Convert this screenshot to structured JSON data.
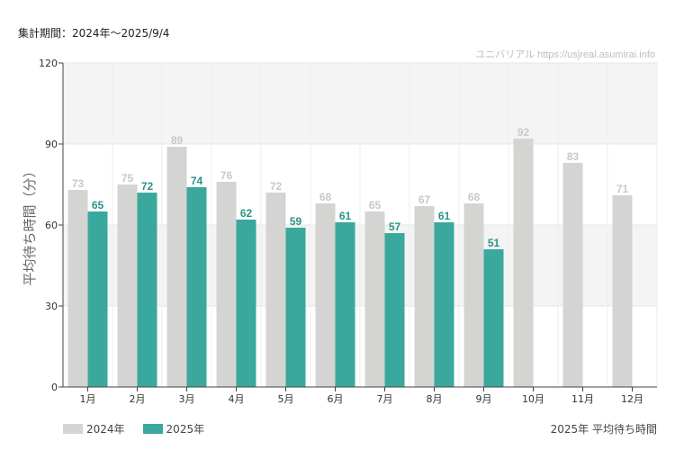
{
  "header": {
    "period": "集計期間：2024年～2025/9/4",
    "source": "ユニバリアル  https://usjreal.asumirai.info"
  },
  "footer": {
    "caption": "2025年 平均待ち時間"
  },
  "colors": {
    "series_2024": "#d4d4d2",
    "series_2025": "#3aa89c",
    "label_2024": "#c8c8c8",
    "label_2025": "#2b9286",
    "band": "#f4f4f4",
    "grid": "#e6e6e6"
  },
  "chart_data": {
    "type": "bar",
    "ylabel": "平均待ち時間（分）",
    "ylim": [
      0,
      120
    ],
    "yticks": [
      0,
      30,
      60,
      90,
      120
    ],
    "categories": [
      "1月",
      "2月",
      "3月",
      "4月",
      "5月",
      "6月",
      "7月",
      "8月",
      "9月",
      "10月",
      "11月",
      "12月"
    ],
    "series": [
      {
        "name": "2024年",
        "values": [
          73,
          75,
          89,
          76,
          72,
          68,
          65,
          67,
          68,
          92,
          83,
          71
        ]
      },
      {
        "name": "2025年",
        "values": [
          65,
          72,
          74,
          62,
          59,
          61,
          57,
          61,
          51,
          null,
          null,
          null
        ]
      }
    ],
    "legend_position": "bottom-left",
    "grid": true
  }
}
